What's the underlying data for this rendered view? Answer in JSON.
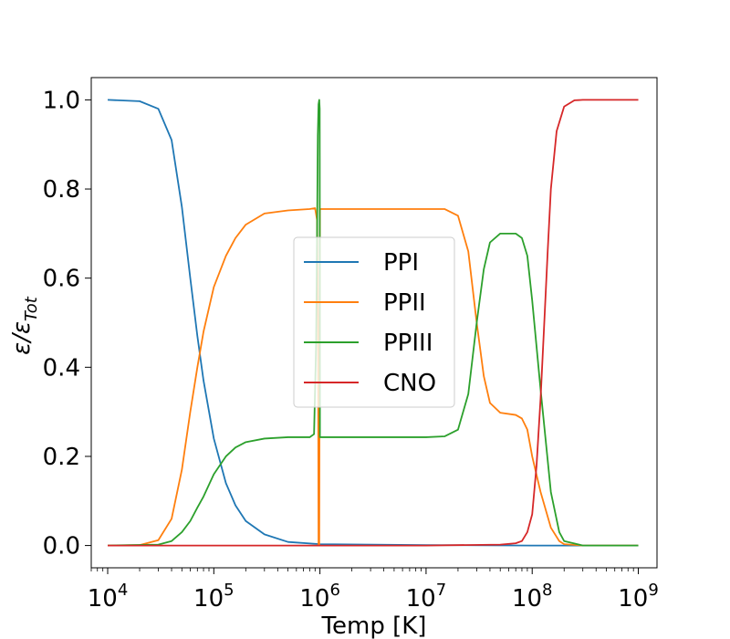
{
  "chart_data": {
    "type": "line",
    "xscale": "log",
    "xlabel": "Temp [K]",
    "ylabel_main": "ε/ε",
    "ylabel_sub": "Tot",
    "xlim": [
      7000,
      1500000000
    ],
    "ylim": [
      -0.05,
      1.05
    ],
    "x_ticks": [
      {
        "value": 10000,
        "base": "10",
        "exp": "4"
      },
      {
        "value": 100000,
        "base": "10",
        "exp": "5"
      },
      {
        "value": 1000000,
        "base": "10",
        "exp": "6"
      },
      {
        "value": 10000000,
        "base": "10",
        "exp": "7"
      },
      {
        "value": 100000000,
        "base": "10",
        "exp": "8"
      },
      {
        "value": 1000000000,
        "base": "10",
        "exp": "9"
      }
    ],
    "y_ticks": [
      {
        "value": 0.0,
        "label": "0.0"
      },
      {
        "value": 0.2,
        "label": "0.2"
      },
      {
        "value": 0.4,
        "label": "0.4"
      },
      {
        "value": 0.6,
        "label": "0.6"
      },
      {
        "value": 0.8,
        "label": "0.8"
      },
      {
        "value": 1.0,
        "label": "1.0"
      }
    ],
    "grid": false,
    "legend_position": "center",
    "series": [
      {
        "name": "PPI",
        "color": "#1f77b4",
        "points": [
          [
            10000,
            1.0
          ],
          [
            20000,
            0.997
          ],
          [
            30000,
            0.98
          ],
          [
            40000,
            0.91
          ],
          [
            50000,
            0.76
          ],
          [
            60000,
            0.6
          ],
          [
            70000,
            0.47
          ],
          [
            80000,
            0.37
          ],
          [
            100000,
            0.24
          ],
          [
            130000,
            0.14
          ],
          [
            160000,
            0.09
          ],
          [
            200000,
            0.055
          ],
          [
            300000,
            0.025
          ],
          [
            500000,
            0.008
          ],
          [
            1000000,
            0.003
          ],
          [
            10000000,
            0.001
          ],
          [
            100000000,
            0.0
          ],
          [
            1000000000,
            0.0
          ]
        ]
      },
      {
        "name": "PPII",
        "color": "#ff7f0e",
        "points": [
          [
            10000,
            0.0
          ],
          [
            20000,
            0.001
          ],
          [
            30000,
            0.012
          ],
          [
            40000,
            0.06
          ],
          [
            50000,
            0.17
          ],
          [
            60000,
            0.3
          ],
          [
            70000,
            0.4
          ],
          [
            80000,
            0.48
          ],
          [
            100000,
            0.58
          ],
          [
            130000,
            0.65
          ],
          [
            160000,
            0.69
          ],
          [
            200000,
            0.72
          ],
          [
            300000,
            0.745
          ],
          [
            500000,
            0.752
          ],
          [
            800000,
            0.755
          ],
          [
            900000,
            0.757
          ],
          [
            940000,
            0.73
          ],
          [
            960000,
            0.5
          ],
          [
            970000,
            0.0
          ],
          [
            985000,
            0.0
          ],
          [
            1000000,
            0.755
          ],
          [
            5000000,
            0.755
          ],
          [
            10000000,
            0.755
          ],
          [
            15000000,
            0.755
          ],
          [
            20000000,
            0.74
          ],
          [
            25000000,
            0.66
          ],
          [
            30000000,
            0.5
          ],
          [
            35000000,
            0.38
          ],
          [
            40000000,
            0.32
          ],
          [
            50000000,
            0.298
          ],
          [
            70000000,
            0.293
          ],
          [
            80000000,
            0.285
          ],
          [
            90000000,
            0.26
          ],
          [
            100000000,
            0.2
          ],
          [
            120000000,
            0.12
          ],
          [
            150000000,
            0.04
          ],
          [
            180000000,
            0.01
          ],
          [
            200000000,
            0.003
          ],
          [
            300000000,
            0.0
          ],
          [
            1000000000,
            0.0
          ]
        ]
      },
      {
        "name": "PPIII",
        "color": "#2ca02c",
        "points": [
          [
            10000,
            0.0
          ],
          [
            30000,
            0.002
          ],
          [
            40000,
            0.01
          ],
          [
            50000,
            0.03
          ],
          [
            60000,
            0.055
          ],
          [
            70000,
            0.085
          ],
          [
            80000,
            0.11
          ],
          [
            100000,
            0.16
          ],
          [
            130000,
            0.2
          ],
          [
            160000,
            0.22
          ],
          [
            200000,
            0.232
          ],
          [
            300000,
            0.24
          ],
          [
            500000,
            0.243
          ],
          [
            800000,
            0.243
          ],
          [
            880000,
            0.25
          ],
          [
            920000,
            0.45
          ],
          [
            940000,
            0.7
          ],
          [
            955000,
            0.92
          ],
          [
            970000,
            0.99
          ],
          [
            985000,
            1.0
          ],
          [
            995000,
            0.98
          ],
          [
            1000000,
            0.243
          ],
          [
            10000000,
            0.243
          ],
          [
            15000000,
            0.245
          ],
          [
            20000000,
            0.26
          ],
          [
            25000000,
            0.34
          ],
          [
            30000000,
            0.5
          ],
          [
            35000000,
            0.62
          ],
          [
            40000000,
            0.68
          ],
          [
            50000000,
            0.7
          ],
          [
            70000000,
            0.7
          ],
          [
            80000000,
            0.69
          ],
          [
            90000000,
            0.65
          ],
          [
            100000000,
            0.55
          ],
          [
            120000000,
            0.35
          ],
          [
            150000000,
            0.12
          ],
          [
            180000000,
            0.03
          ],
          [
            200000000,
            0.01
          ],
          [
            300000000,
            0.0
          ],
          [
            1000000000,
            0.0
          ]
        ]
      },
      {
        "name": "CNO",
        "color": "#d62728",
        "points": [
          [
            10000,
            0.0
          ],
          [
            10000000,
            0.0
          ],
          [
            50000000,
            0.002
          ],
          [
            70000000,
            0.005
          ],
          [
            80000000,
            0.01
          ],
          [
            90000000,
            0.03
          ],
          [
            100000000,
            0.07
          ],
          [
            110000000,
            0.18
          ],
          [
            120000000,
            0.33
          ],
          [
            130000000,
            0.5
          ],
          [
            140000000,
            0.66
          ],
          [
            150000000,
            0.8
          ],
          [
            170000000,
            0.93
          ],
          [
            200000000,
            0.985
          ],
          [
            250000000,
            0.999
          ],
          [
            300000000,
            1.0
          ],
          [
            1000000000,
            1.0
          ]
        ]
      }
    ]
  }
}
